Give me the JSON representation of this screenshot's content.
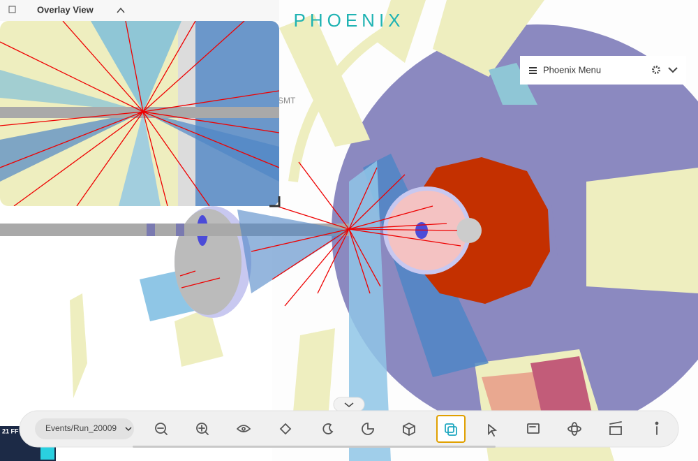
{
  "overlay": {
    "title": "Overlay View"
  },
  "logo": "PHOENIX",
  "menu": {
    "title": "Phoenix Menu"
  },
  "scene": {
    "label": "SMT"
  },
  "toolbar": {
    "event_select": "Events/Run_20009"
  },
  "corner": {
    "label": "21 FF"
  }
}
